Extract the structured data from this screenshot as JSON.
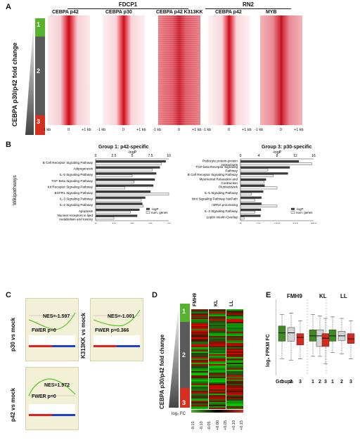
{
  "panel_labels": {
    "a": "A",
    "b": "B",
    "c": "C",
    "d": "D",
    "e": "E"
  },
  "panel_a": {
    "header_fdcp1": "FDCP1",
    "header_rn2": "RN2",
    "ylabel": "CEBPA p30/p42 fold change",
    "groups": [
      "1",
      "2",
      "3"
    ],
    "heatmaps": [
      {
        "title": "CEBPA p42"
      },
      {
        "title": "CEBPA p30"
      },
      {
        "title": "CEBPA p42 K313KK"
      },
      {
        "title": "CEBPA p42"
      },
      {
        "title": "MYB"
      }
    ],
    "x_ticks": [
      "-1 kb",
      "0",
      "+1 kb"
    ]
  },
  "panel_b": {
    "side_label": "Wikipathways",
    "legend": [
      "-logP",
      "num. genes"
    ],
    "xlabel_bottom": "num. genes",
    "group1": {
      "title": "Group 1: p42-specific",
      "xlabel_top": "-logP",
      "top_ticks": [
        "0",
        "2.5",
        "5",
        "7.5",
        "10"
      ],
      "bottom_ticks": [
        "0",
        "10",
        "20",
        "30",
        "40"
      ],
      "pathways": [
        "B Cell Receptor Signaling Pathway",
        "Adipogenesis",
        "IL-5 Signaling Pathway",
        "TGF Beta Signaling Pathway",
        "Kit Receptor Signaling Pathway",
        "EGFR1 Signaling Pathway",
        "IL-3 Signaling Pathway",
        "IL-2 Signaling Pathway",
        "Apoptosis",
        "Nuclear receptors in lipid metabolism and toxicity"
      ],
      "logP": [
        9.6,
        8.8,
        8.3,
        8.1,
        7.9,
        7.5,
        6.8,
        6.4,
        6.0,
        5.7
      ],
      "num_genes": [
        36,
        31,
        20,
        21,
        16,
        40,
        25,
        26,
        19,
        10
      ]
    },
    "group3": {
      "title": "Group 3: p30-specific",
      "xlabel_top": "-logP",
      "top_ticks": [
        "0",
        "4",
        "8",
        "12",
        "16"
      ],
      "bottom_ticks": [
        "0",
        "50",
        "100",
        "150",
        "200"
      ],
      "pathways": [
        "Podocyte protein-protein interactions",
        "TGF-beta Receptor Signaling Pathway",
        "B Cell Receptor Signaling Pathway",
        "Myometrial Relaxation and Contraction",
        "PluriNetWork",
        "IL-5 Signaling Pathway",
        "Wnt Signaling Pathway NetPath",
        "mRNA processing",
        "IL-3 Signaling Pathway",
        "Leptin Insulin Overlap"
      ],
      "logP": [
        12.8,
        10.8,
        10.4,
        5.6,
        5.3,
        5.0,
        4.6,
        4.6,
        4.5,
        4.4
      ],
      "num_genes": [
        195,
        75,
        90,
        65,
        100,
        30,
        40,
        100,
        40,
        10
      ]
    }
  },
  "panel_c": {
    "plots": [
      {
        "nes": "NES=-1.597",
        "fwer": "FWER p=0",
        "label": "p30 vs mock"
      },
      {
        "nes": "NES=-1.001",
        "fwer": "FWER p=0.366",
        "label": "K313KK vs mock"
      },
      {
        "nes": "NES=1.972",
        "fwer": "FWER p=0",
        "label": "p42 vs mock"
      }
    ]
  },
  "panel_d": {
    "ylabel": "CEBPA p30/p42 fold change",
    "columns": [
      "FMH9",
      "KL",
      "LL"
    ],
    "groups": [
      "1",
      "2",
      "3"
    ],
    "scale_label": "log₂ FC",
    "scale_ticks": [
      "-0.15",
      "-0.10",
      "-0.05",
      "+0.00",
      "+0.05",
      "+0.10",
      "+0.15"
    ]
  },
  "panel_e": {
    "ylabel": "log₂ FPKM FC",
    "conditions": [
      "FMH9",
      "KL",
      "LL"
    ],
    "xlabel": "Groups",
    "group_ticks": [
      "1",
      "2",
      "3"
    ],
    "colors": {
      "g1": "#3f8b22",
      "g2": "#d4d4d4",
      "g3": "#d52a1e"
    }
  },
  "chart_data": [
    {
      "type": "bar",
      "title": "Group 1: p42-specific",
      "categories": [
        "B Cell Receptor Signaling Pathway",
        "Adipogenesis",
        "IL-5 Signaling Pathway",
        "TGF Beta Signaling Pathway",
        "Kit Receptor Signaling Pathway",
        "EGFR1 Signaling Pathway",
        "IL-3 Signaling Pathway",
        "IL-2 Signaling Pathway",
        "Apoptosis",
        "Nuclear receptors in lipid metabolism and toxicity"
      ],
      "series": [
        {
          "name": "-logP",
          "values": [
            9.6,
            8.8,
            8.3,
            8.1,
            7.9,
            7.5,
            6.8,
            6.4,
            6.0,
            5.7
          ]
        },
        {
          "name": "num. genes",
          "values": [
            36,
            31,
            20,
            21,
            16,
            40,
            25,
            26,
            19,
            10
          ]
        }
      ],
      "xlabel": "num. genes",
      "xlim_logP": [
        0,
        10
      ],
      "xlim_genes": [
        0,
        40
      ],
      "legend": "bottom-right"
    },
    {
      "type": "bar",
      "title": "Group 3: p30-specific",
      "categories": [
        "Podocyte protein-protein interactions",
        "TGF-beta Receptor Signaling Pathway",
        "B Cell Receptor Signaling Pathway",
        "Myometrial Relaxation and Contraction",
        "PluriNetWork",
        "IL-5 Signaling Pathway",
        "Wnt Signaling Pathway NetPath",
        "mRNA processing",
        "IL-3 Signaling Pathway",
        "Leptin Insulin Overlap"
      ],
      "series": [
        {
          "name": "-logP",
          "values": [
            12.8,
            10.8,
            10.4,
            5.6,
            5.3,
            5.0,
            4.6,
            4.6,
            4.5,
            4.4
          ]
        },
        {
          "name": "num. genes",
          "values": [
            195,
            75,
            90,
            65,
            100,
            30,
            40,
            100,
            40,
            10
          ]
        }
      ],
      "xlabel": "num. genes",
      "xlim_logP": [
        0,
        16
      ],
      "xlim_genes": [
        0,
        200
      ],
      "legend": "bottom-right"
    }
  ]
}
